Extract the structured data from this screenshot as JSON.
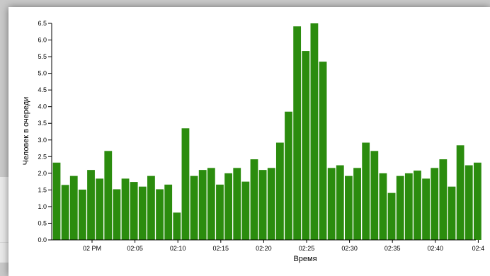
{
  "chart_data": {
    "type": "bar",
    "xlabel": "Время",
    "ylabel": "Человек в очереди",
    "ylim": [
      0,
      6.5
    ],
    "y_ticks": [
      "0.0",
      "0.5",
      "1.0",
      "1.5",
      "2.0",
      "2.5",
      "3.0",
      "3.5",
      "4.0",
      "4.5",
      "5.0",
      "5.5",
      "6.0",
      "6.5"
    ],
    "x_ticks": [
      "02 PM",
      "02:05",
      "02:10",
      "02:15",
      "02:20",
      "02:25",
      "02:30",
      "02:35",
      "02:40",
      "02:4"
    ],
    "bar_color": "#2b8c0e",
    "values": [
      2.32,
      1.65,
      1.92,
      1.51,
      2.1,
      1.84,
      2.67,
      1.52,
      1.84,
      1.74,
      1.6,
      1.92,
      1.52,
      1.66,
      0.82,
      3.35,
      1.92,
      2.1,
      2.16,
      1.66,
      2.0,
      2.16,
      1.75,
      2.42,
      2.1,
      2.16,
      2.92,
      3.85,
      6.41,
      5.67,
      6.5,
      5.35,
      2.16,
      2.24,
      1.92,
      2.16,
      2.92,
      2.67,
      2.0,
      1.41,
      1.92,
      2.0,
      2.08,
      1.84,
      2.16,
      2.42,
      1.6,
      2.84,
      2.24,
      2.32
    ]
  }
}
